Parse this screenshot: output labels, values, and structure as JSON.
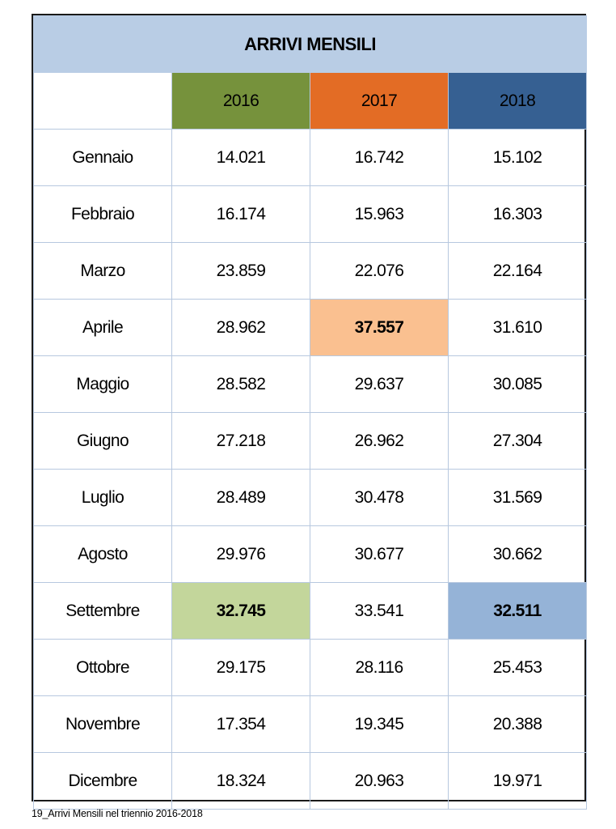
{
  "table": {
    "title": "ARRIVI MENSILI",
    "corner": "",
    "columns": [
      {
        "label": "2016",
        "color": "#76923c"
      },
      {
        "label": "2017",
        "color": "#e36c25"
      },
      {
        "label": "2018",
        "color": "#366092"
      }
    ],
    "rows": [
      {
        "month": "Gennaio",
        "values": [
          "14.021",
          "16.742",
          "15.102"
        ]
      },
      {
        "month": "Febbraio",
        "values": [
          "16.174",
          "15.963",
          "16.303"
        ]
      },
      {
        "month": "Marzo",
        "values": [
          "23.859",
          "22.076",
          "22.164"
        ]
      },
      {
        "month": "Aprile",
        "values": [
          "28.962",
          "37.557",
          "31.610"
        ]
      },
      {
        "month": "Maggio",
        "values": [
          "28.582",
          "29.637",
          "30.085"
        ]
      },
      {
        "month": "Giugno",
        "values": [
          "27.218",
          "26.962",
          "27.304"
        ]
      },
      {
        "month": "Luglio",
        "values": [
          "28.489",
          "30.478",
          "31.569"
        ]
      },
      {
        "month": "Agosto",
        "values": [
          "29.976",
          "30.677",
          "30.662"
        ]
      },
      {
        "month": "Settembre",
        "values": [
          "32.745",
          "33.541",
          "32.511"
        ]
      },
      {
        "month": "Ottobre",
        "values": [
          "29.175",
          "28.116",
          "25.453"
        ]
      },
      {
        "month": "Novembre",
        "values": [
          "17.354",
          "19.345",
          "20.388"
        ]
      },
      {
        "month": "Dicembre",
        "values": [
          "18.324",
          "20.963",
          "19.971"
        ]
      }
    ],
    "highlights": [
      {
        "row": 3,
        "col": 1,
        "color": "#fac090"
      },
      {
        "row": 8,
        "col": 0,
        "color": "#c3d69b"
      },
      {
        "row": 8,
        "col": 2,
        "color": "#95b3d7"
      }
    ]
  },
  "caption": "19_Arrivi Mensili nel triennio 2016-2018"
}
